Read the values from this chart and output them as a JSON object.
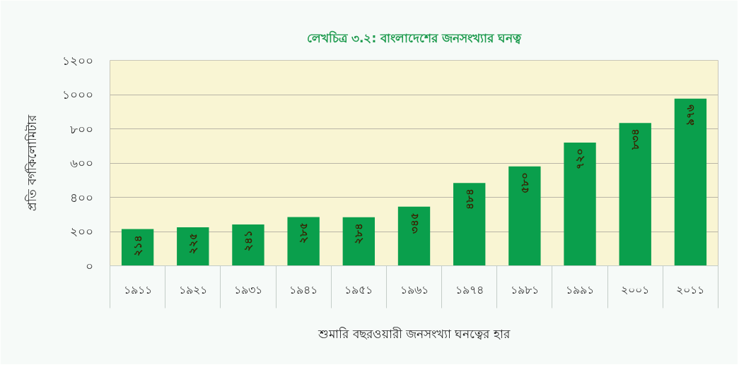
{
  "chart_data": {
    "type": "bar",
    "title": "লেখচিত্র ৩.২: বাংলাদেশের জনসংখ্যার ঘনত্ব",
    "xlabel": "শুমারি বছরওয়ারী জনসংখ্যা ঘনত্বের হার",
    "ylabel": "প্রতি বর্গকিলোমিটার",
    "categories": [
      "১৯১১",
      "১৯২১",
      "১৯৩১",
      "১৯৪১",
      "১৯৫১",
      "১৯৬১",
      "১৯৭৪",
      "১৯৮১",
      "১৯৯১",
      "২০০১",
      "২০১১"
    ],
    "values": [
      214,
      225,
      241,
      285,
      284,
      345,
      484,
      580,
      720,
      834,
      976
    ],
    "value_labels": [
      "২১৪",
      "২২৫",
      "২৪১",
      "২৮৫",
      "২৮৪",
      "৩৪৫",
      "৪৮৪",
      "৫৮০",
      "৭২০",
      "৮৩৪",
      "৯৭৬"
    ],
    "color": "#0a9f4c",
    "ylim": [
      0,
      1200
    ],
    "yticks": [
      {
        "value": 0,
        "label": "০"
      },
      {
        "value": 200,
        "label": "২০০"
      },
      {
        "value": 400,
        "label": "৪০০"
      },
      {
        "value": 600,
        "label": "৬০০"
      },
      {
        "value": 800,
        "label": "৮০০"
      },
      {
        "value": 1000,
        "label": "১০০০"
      },
      {
        "value": 1200,
        "label": "১২০০"
      }
    ],
    "grid": "y"
  }
}
